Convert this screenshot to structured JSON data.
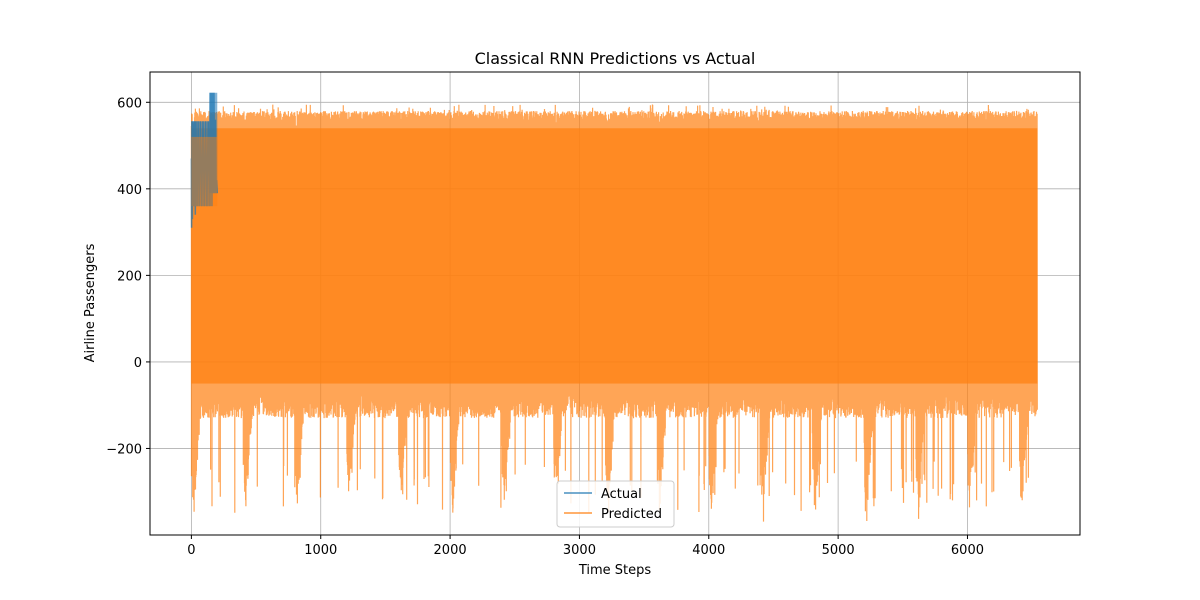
{
  "chart_data": {
    "type": "line",
    "title": "Classical RNN Predictions vs Actual",
    "xlabel": "Time Steps",
    "ylabel": "Airline Passengers",
    "xlim": [
      -320,
      6870
    ],
    "ylim": [
      -400,
      670
    ],
    "x_ticks": [
      0,
      1000,
      2000,
      3000,
      4000,
      5000,
      6000
    ],
    "y_ticks": [
      -200,
      0,
      200,
      400,
      600
    ],
    "y_tick_labels": [
      "−200",
      "0",
      "200",
      "400",
      "600"
    ],
    "grid": true,
    "legend_position": "lower center",
    "series": [
      {
        "name": "Actual",
        "color": "#1f77b4",
        "alpha": 0.7,
        "x_range": [
          0,
          200
        ],
        "description_values": {
          "min": 310,
          "max": 622,
          "plateaus": [
            {
              "x": [
                0,
                180
              ],
              "level": 556
            },
            {
              "x": [
                135,
                170
              ],
              "level": 556
            },
            {
              "x": [
                140,
                200
              ],
              "level": 622
            },
            {
              "x": [
                60,
                170
              ],
              "level": 360
            },
            {
              "x": [
                170,
                200
              ],
              "level": 390
            }
          ]
        }
      },
      {
        "name": "Predicted",
        "color": "#ff7f0e",
        "alpha": 0.7,
        "x_range": [
          0,
          6540
        ],
        "description_values": {
          "typical_max": 570,
          "typical_min": -70,
          "peak_max": 595,
          "trough_min": -350,
          "season_period": 400
        }
      }
    ]
  }
}
